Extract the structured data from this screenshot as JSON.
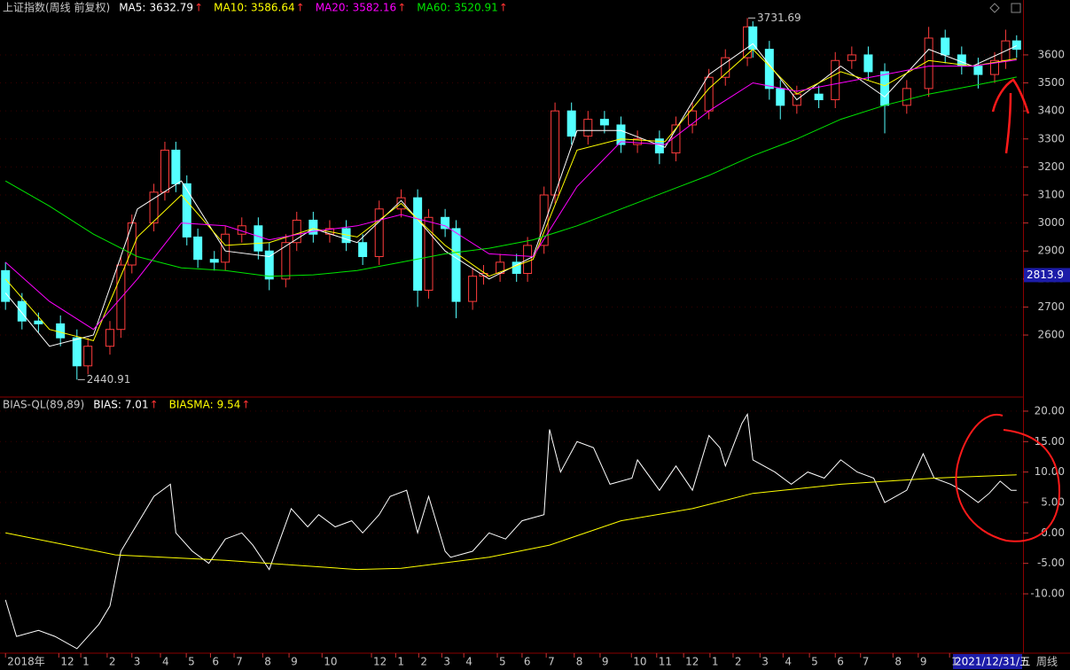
{
  "chart_data": [
    {
      "type": "candlestick",
      "title": "上证指数(周线 前复权)",
      "up_color": "#ff3c3c",
      "down_color": "#54ffff",
      "xlim": [
        -1,
        185
      ],
      "ylim": [
        2404,
        3739
      ],
      "yticks": [
        2600,
        2700,
        2800,
        2900,
        3000,
        3100,
        3200,
        3300,
        3400,
        3500,
        3600
      ],
      "xticks": [
        {
          "value": 0,
          "label": "2018年"
        },
        {
          "value": 9.7,
          "label": "12"
        },
        {
          "value": 13.7,
          "label": "1"
        },
        {
          "value": 18.5,
          "label": "2"
        },
        {
          "value": 23,
          "label": "3"
        },
        {
          "value": 28.2,
          "label": "4"
        },
        {
          "value": 32.9,
          "label": "5"
        },
        {
          "value": 37.3,
          "label": "6"
        },
        {
          "value": 41.6,
          "label": "7"
        },
        {
          "value": 46.8,
          "label": "8"
        },
        {
          "value": 51.6,
          "label": "9"
        },
        {
          "value": 57.6,
          "label": "10"
        },
        {
          "value": 66.6,
          "label": "12"
        },
        {
          "value": 71,
          "label": "1"
        },
        {
          "value": 75.2,
          "label": "2"
        },
        {
          "value": 79.4,
          "label": "3"
        },
        {
          "value": 83.4,
          "label": "4"
        },
        {
          "value": 89.5,
          "label": "5"
        },
        {
          "value": 94,
          "label": "6"
        },
        {
          "value": 98.4,
          "label": "7"
        },
        {
          "value": 103.5,
          "label": "8"
        },
        {
          "value": 108.2,
          "label": "9"
        },
        {
          "value": 113.9,
          "label": "10"
        },
        {
          "value": 118.5,
          "label": "11"
        },
        {
          "value": 123.4,
          "label": "12"
        },
        {
          "value": 128.2,
          "label": "1"
        },
        {
          "value": 132.4,
          "label": "2"
        },
        {
          "value": 137.3,
          "label": "3"
        },
        {
          "value": 141.5,
          "label": "4"
        },
        {
          "value": 146.3,
          "label": "5"
        },
        {
          "value": 151,
          "label": "6"
        },
        {
          "value": 155.6,
          "label": "7"
        },
        {
          "value": 161.5,
          "label": "8"
        },
        {
          "value": 166.1,
          "label": "9"
        },
        {
          "value": 171.8,
          "label": "1"
        }
      ],
      "x": [
        0,
        3,
        6,
        10,
        13,
        15,
        19,
        21,
        23,
        27,
        29,
        31,
        33,
        35,
        38,
        40,
        43,
        46,
        48,
        51,
        53,
        56,
        59,
        62,
        65,
        68,
        72,
        75,
        77,
        80,
        82,
        85,
        87,
        90,
        93,
        95,
        98,
        100,
        103,
        106,
        109,
        112,
        115,
        119,
        122,
        125,
        128,
        131,
        135,
        136,
        139,
        141,
        144,
        148,
        151,
        154,
        157,
        160,
        164,
        168,
        171,
        174,
        177,
        180,
        182,
        184
      ],
      "open": [
        2830,
        2720,
        2650,
        2640,
        2590,
        2490,
        2560,
        2620,
        2850,
        3000,
        3110,
        3260,
        3140,
        2950,
        2870,
        2860,
        2960,
        2990,
        2900,
        2800,
        2930,
        3010,
        2960,
        2980,
        2930,
        2880,
        3050,
        3090,
        2760,
        3020,
        2980,
        2720,
        2810,
        2820,
        2860,
        2820,
        2920,
        3100,
        3400,
        3310,
        3370,
        3350,
        3280,
        3300,
        3250,
        3350,
        3400,
        3520,
        3590,
        3700,
        3620,
        3480,
        3420,
        3460,
        3440,
        3580,
        3600,
        3540,
        3420,
        3480,
        3660,
        3600,
        3560,
        3530,
        3580,
        3650
      ],
      "high": [
        2860,
        2750,
        2680,
        2670,
        2620,
        2590,
        2650,
        2880,
        3030,
        3140,
        3290,
        3290,
        3170,
        2980,
        2900,
        2990,
        3020,
        3020,
        2930,
        2960,
        3040,
        3040,
        3010,
        3010,
        2960,
        3080,
        3120,
        3120,
        3050,
        3050,
        3010,
        2840,
        2850,
        2890,
        2890,
        2950,
        3130,
        3430,
        3430,
        3400,
        3400,
        3380,
        3330,
        3330,
        3380,
        3430,
        3550,
        3620,
        3731.69,
        3720,
        3650,
        3510,
        3490,
        3490,
        3610,
        3630,
        3630,
        3570,
        3510,
        3700,
        3690,
        3630,
        3590,
        3610,
        3690,
        3670
      ],
      "low": [
        2690,
        2620,
        2610,
        2560,
        2440.91,
        2460,
        2530,
        2590,
        2820,
        2970,
        3080,
        3110,
        2920,
        2840,
        2830,
        2830,
        2930,
        2870,
        2760,
        2770,
        2900,
        2930,
        2930,
        2900,
        2850,
        2850,
        3020,
        2700,
        2730,
        2950,
        2660,
        2690,
        2780,
        2790,
        2790,
        2790,
        2890,
        3070,
        3280,
        3280,
        3320,
        3250,
        3250,
        3210,
        3220,
        3320,
        3370,
        3490,
        3560,
        3590,
        3440,
        3370,
        3390,
        3410,
        3410,
        3550,
        3510,
        3320,
        3390,
        3450,
        3570,
        3530,
        3480,
        3500,
        3550,
        3590
      ],
      "close": [
        2720,
        2650,
        2640,
        2590,
        2490,
        2560,
        2620,
        2850,
        3000,
        3110,
        3260,
        3140,
        2950,
        2870,
        2860,
        2960,
        2990,
        2900,
        2800,
        2930,
        3010,
        2960,
        2980,
        2930,
        2880,
        3050,
        3090,
        2760,
        3020,
        2980,
        2720,
        2810,
        2820,
        2860,
        2820,
        2920,
        3100,
        3400,
        3310,
        3370,
        3350,
        3280,
        3300,
        3250,
        3350,
        3400,
        3520,
        3590,
        3700,
        3620,
        3480,
        3420,
        3460,
        3440,
        3580,
        3600,
        3540,
        3420,
        3480,
        3660,
        3600,
        3560,
        3530,
        3580,
        3650,
        3620
      ],
      "cursor_price": 2813.9,
      "series": [
        {
          "name": "MA5:",
          "color": "#ffffff",
          "trend": "↑",
          "x": [
            0,
            8,
            16,
            24,
            32,
            40,
            48,
            56,
            64,
            72,
            80,
            88,
            96,
            104,
            112,
            120,
            128,
            136,
            144,
            152,
            160,
            168,
            176,
            184
          ],
          "values": [
            2750,
            2560,
            2600,
            3050,
            3150,
            2900,
            2880,
            2980,
            2930,
            3080,
            2900,
            2800,
            2880,
            3330,
            3330,
            3270,
            3530,
            3640,
            3440,
            3560,
            3450,
            3620,
            3560,
            3632.79
          ]
        },
        {
          "name": "MA10:",
          "color": "#ffff00",
          "trend": "↑",
          "x": [
            0,
            8,
            16,
            24,
            32,
            40,
            48,
            56,
            64,
            72,
            80,
            88,
            96,
            104,
            112,
            120,
            128,
            136,
            144,
            152,
            160,
            168,
            176,
            184
          ],
          "values": [
            2800,
            2620,
            2580,
            2950,
            3100,
            2920,
            2930,
            2980,
            2950,
            3070,
            2920,
            2810,
            2870,
            3260,
            3300,
            3290,
            3480,
            3620,
            3460,
            3540,
            3490,
            3580,
            3560,
            3586.64
          ]
        },
        {
          "name": "MA20:",
          "color": "#ff00ff",
          "trend": "↑",
          "x": [
            0,
            8,
            16,
            24,
            32,
            40,
            48,
            56,
            64,
            72,
            80,
            88,
            96,
            104,
            112,
            120,
            128,
            136,
            144,
            152,
            160,
            168,
            176,
            184
          ],
          "values": [
            2860,
            2720,
            2620,
            2800,
            3000,
            2990,
            2940,
            2970,
            2990,
            3030,
            2990,
            2890,
            2880,
            3130,
            3290,
            3280,
            3400,
            3500,
            3470,
            3500,
            3530,
            3560,
            3560,
            3582.16
          ]
        },
        {
          "name": "MA60:",
          "color": "#00e600",
          "trend": "↑",
          "x": [
            0,
            8,
            16,
            24,
            32,
            40,
            48,
            56,
            64,
            72,
            80,
            88,
            96,
            104,
            112,
            120,
            128,
            136,
            144,
            152,
            160,
            168,
            176,
            184
          ],
          "values": [
            3150,
            3060,
            2960,
            2880,
            2840,
            2830,
            2810,
            2815,
            2830,
            2860,
            2890,
            2910,
            2940,
            2990,
            3050,
            3110,
            3170,
            3240,
            3300,
            3370,
            3420,
            3460,
            3490,
            3520.91
          ]
        }
      ]
    },
    {
      "type": "line",
      "title": "BIAS-QL(89,89)",
      "xlim": [
        -1,
        185
      ],
      "ylim": [
        -19.6,
        21.3
      ],
      "yticks": [
        {
          "value": 20,
          "label": "20.00"
        },
        {
          "value": 15,
          "label": "15.00"
        },
        {
          "value": 10,
          "label": "10.00"
        },
        {
          "value": 5,
          "label": "5.00"
        },
        {
          "value": 0,
          "label": "0.00"
        },
        {
          "value": -5,
          "label": "-5.00"
        },
        {
          "value": -10,
          "label": "-10.00"
        }
      ],
      "series": [
        {
          "name": "BIAS:",
          "color": "#ffffff",
          "trend": "↑",
          "x": [
            0,
            2,
            6,
            9,
            13,
            17,
            19,
            21,
            23,
            25,
            27,
            30,
            31,
            34,
            37,
            40,
            43,
            45,
            48,
            50,
            52,
            55,
            57,
            60,
            63,
            65,
            68,
            70,
            73,
            75,
            77,
            80,
            81,
            85,
            88,
            91,
            94,
            98,
            99,
            101,
            104,
            107,
            110,
            114,
            115,
            119,
            122,
            125,
            128,
            130,
            131,
            134,
            135,
            136,
            140,
            143,
            146,
            149,
            152,
            155,
            158,
            160,
            164,
            167,
            169,
            172,
            174,
            177,
            179,
            181,
            183,
            184
          ],
          "values": [
            -11,
            -17,
            -16,
            -17,
            -19,
            -15,
            -12,
            -3,
            0,
            3,
            6,
            8,
            0,
            -3,
            -5,
            -1,
            0,
            -2,
            -6,
            -1,
            4,
            1,
            3,
            1,
            2,
            0,
            3,
            6,
            7,
            0,
            6,
            -3,
            -4,
            -3,
            0,
            -1,
            2,
            3,
            17,
            10,
            15,
            14,
            8,
            9,
            12,
            7,
            11,
            7,
            16,
            14,
            11,
            18,
            19.5,
            12,
            10,
            8,
            10,
            9,
            12,
            10,
            9,
            5,
            7,
            13,
            9,
            8,
            7,
            5,
            6.5,
            8.5,
            7,
            7.01
          ]
        },
        {
          "name": "BIASMA:",
          "color": "#ffff00",
          "trend": "↑",
          "x": [
            0,
            20,
            40,
            64,
            72,
            88,
            99,
            112,
            125,
            136,
            152,
            169,
            184
          ],
          "values": [
            0,
            -3.6,
            -4.5,
            -6,
            -5.8,
            -4,
            -2,
            2,
            4,
            6.5,
            8,
            9,
            9.54
          ]
        }
      ]
    }
  ],
  "toolbar": {
    "cursor_date": "2021/12/31/五",
    "period": "周线"
  }
}
